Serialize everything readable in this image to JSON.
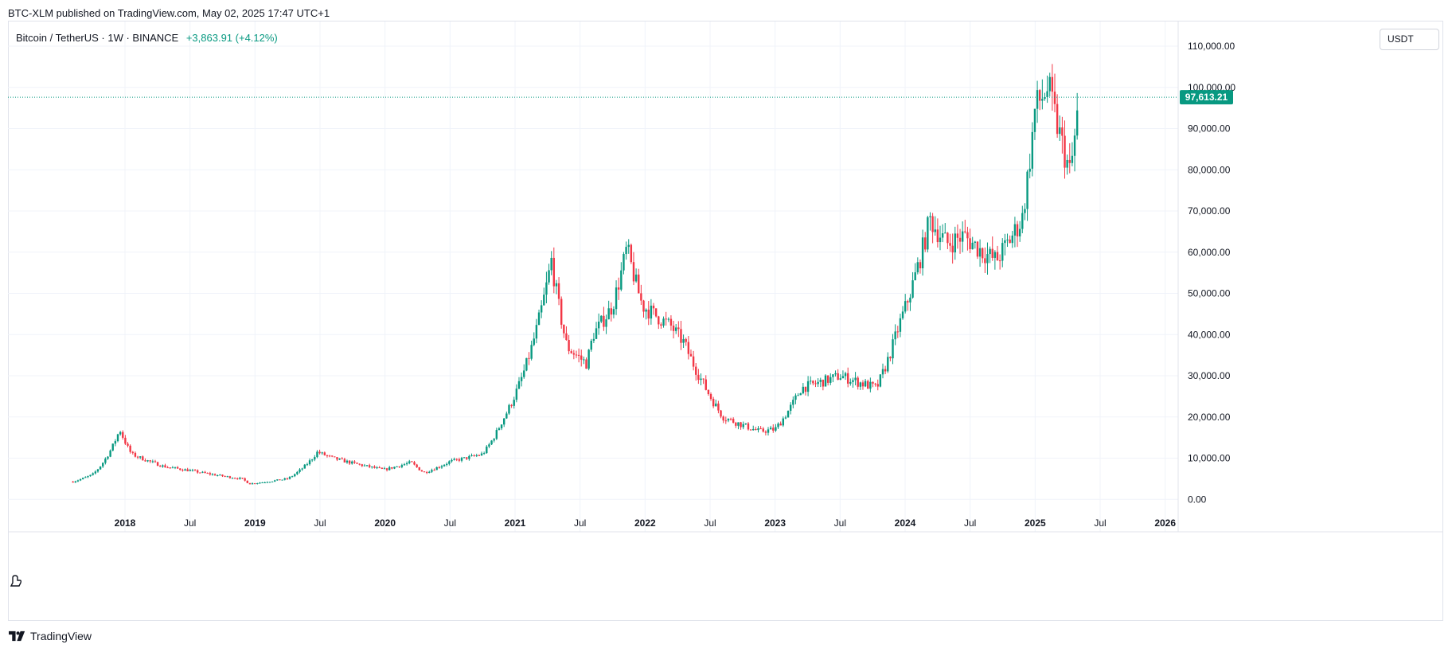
{
  "header": {
    "published_text": "BTC-XLM published on TradingView.com, May 02, 2025 17:47 UTC+1"
  },
  "legend": {
    "symbol": "Bitcoin / TetherUS · 1W · BINANCE",
    "change": "+3,863.91 (+4.12%)"
  },
  "currency_button": "USDT",
  "footer": {
    "brand": "TradingView"
  },
  "icons": {
    "logo": "tradingview-logo-icon",
    "reset": "chart-reset-icon"
  },
  "colors": {
    "up": "#089981",
    "down": "#f23645",
    "grid": "#f0f3fa",
    "last_price_line": "#089981"
  },
  "chart_data": {
    "type": "candlestick",
    "symbol": "BTCUSDT",
    "interval": "1W",
    "y_axis_labels": [
      "110,000.00",
      "100,000.00",
      "90,000.00",
      "80,000.00",
      "70,000.00",
      "60,000.00",
      "50,000.00",
      "40,000.00",
      "30,000.00",
      "20,000.00",
      "10,000.00",
      "0.00"
    ],
    "y_values": [
      110000,
      100000,
      90000,
      80000,
      70000,
      60000,
      50000,
      40000,
      30000,
      20000,
      10000,
      0
    ],
    "ylim": [
      -4000,
      116000
    ],
    "last_price": 97613.21,
    "last_price_label": "97,613.21",
    "x_ticks": [
      {
        "label": "2018",
        "year": 2018.0,
        "bold": true
      },
      {
        "label": "Jul",
        "year": 2018.5,
        "bold": false
      },
      {
        "label": "2019",
        "year": 2019.0,
        "bold": true
      },
      {
        "label": "Jul",
        "year": 2019.5,
        "bold": false
      },
      {
        "label": "2020",
        "year": 2020.0,
        "bold": true
      },
      {
        "label": "Jul",
        "year": 2020.5,
        "bold": false
      },
      {
        "label": "2021",
        "year": 2021.0,
        "bold": true
      },
      {
        "label": "Jul",
        "year": 2021.5,
        "bold": false
      },
      {
        "label": "2022",
        "year": 2022.0,
        "bold": true
      },
      {
        "label": "Jul",
        "year": 2022.5,
        "bold": false
      },
      {
        "label": "2023",
        "year": 2023.0,
        "bold": true
      },
      {
        "label": "Jul",
        "year": 2023.5,
        "bold": false
      },
      {
        "label": "2024",
        "year": 2024.0,
        "bold": true
      },
      {
        "label": "Jul",
        "year": 2024.5,
        "bold": false
      },
      {
        "label": "2025",
        "year": 2025.0,
        "bold": true
      },
      {
        "label": "Jul",
        "year": 2025.5,
        "bold": false
      },
      {
        "label": "2026",
        "year": 2026.0,
        "bold": true
      }
    ],
    "xlim": [
      2017.1,
      2026.1
    ],
    "price_path_years": [
      2017.6,
      2017.75,
      2017.96,
      2018.05,
      2018.3,
      2018.5,
      2018.9,
      2018.96,
      2019.25,
      2019.48,
      2019.6,
      2019.99,
      2020.2,
      2020.3,
      2020.5,
      2020.75,
      2020.9,
      2021.1,
      2021.28,
      2021.4,
      2021.55,
      2021.6,
      2021.75,
      2021.86,
      2021.98,
      2022.2,
      2022.3,
      2022.45,
      2022.6,
      2022.88,
      2023.0,
      2023.2,
      2023.5,
      2023.78,
      2023.95,
      2024.19,
      2024.32,
      2024.45,
      2024.6,
      2024.7,
      2024.9,
      2025.0,
      2025.1,
      2025.27,
      2025.34
    ],
    "price_path_values": [
      4300,
      6000,
      17000,
      11000,
      8000,
      7000,
      5000,
      3800,
      5000,
      11500,
      10000,
      7200,
      9000,
      6500,
      9200,
      11000,
      19000,
      34000,
      58000,
      37000,
      33000,
      40000,
      47000,
      61000,
      47000,
      42000,
      38000,
      28000,
      20000,
      16500,
      17000,
      27000,
      30000,
      27000,
      42000,
      68000,
      62000,
      64000,
      60000,
      58000,
      68000,
      95000,
      100000,
      79000,
      97613
    ]
  }
}
